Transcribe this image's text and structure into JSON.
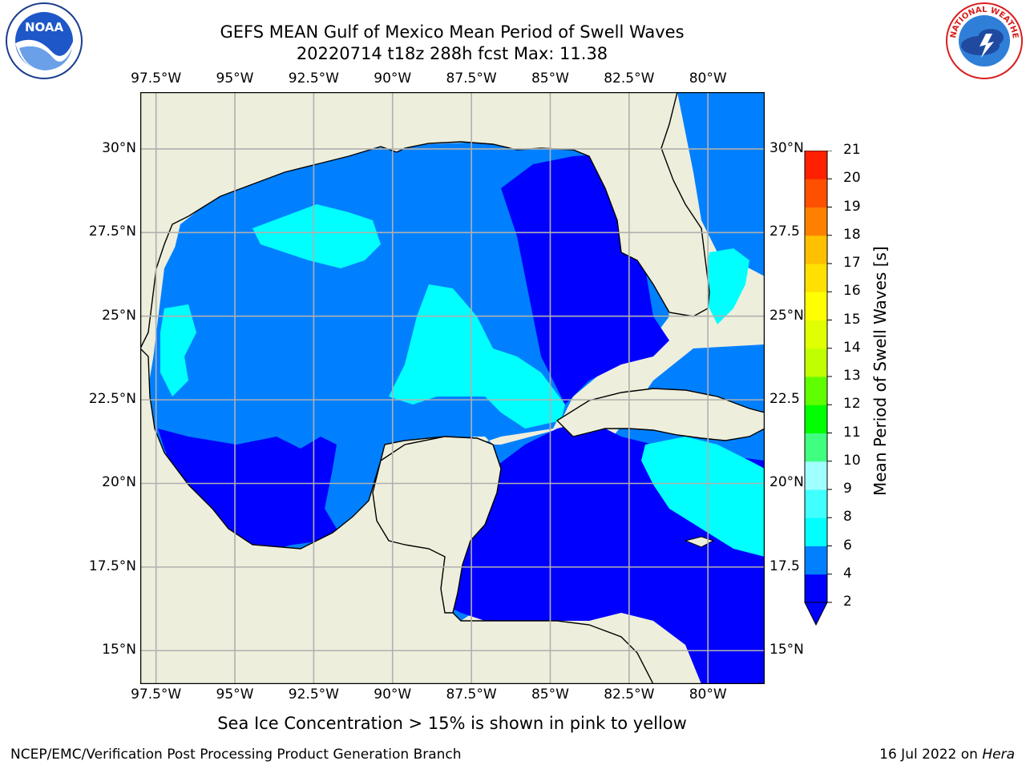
{
  "header": {
    "title_line1": "GEFS MEAN Gulf of Mexico Mean Period of Swell Waves",
    "title_line2": "20220714 t18z 288h fcst   Max: 11.38"
  },
  "logos": {
    "left": "noaa-logo",
    "right": "nws-logo"
  },
  "map": {
    "lon_ticks": [
      "97.5°W",
      "95°W",
      "92.5°W",
      "90°W",
      "87.5°W",
      "85°W",
      "82.5°W",
      "80°W"
    ],
    "lat_ticks": [
      "30°N",
      "27.5°N",
      "25°N",
      "22.5°N",
      "20°N",
      "17.5°N",
      "15°N"
    ],
    "lat_ticks_right": [
      "30°N",
      "27.5",
      "25°N",
      "22.5",
      "20°N",
      "17.5",
      "15°N"
    ],
    "extent": {
      "lon": [
        -98,
        -78.2
      ],
      "lat": [
        14,
        31.7
      ]
    },
    "colors": {
      "land": "#eeeedc",
      "grid": "#b0b0b0",
      "coast": "#000000"
    }
  },
  "colorbar": {
    "label": "Mean Period of Swell Waves [s]",
    "ticks": [
      "2",
      "4",
      "6",
      "8",
      "9",
      "10",
      "11",
      "12",
      "13",
      "14",
      "15",
      "16",
      "17",
      "18",
      "19",
      "20",
      "21"
    ],
    "colors": [
      "#0000ff",
      "#0080ff",
      "#00ffff",
      "#40ffff",
      "#a0ffff",
      "#40ff80",
      "#00ff00",
      "#60ff00",
      "#c0ff00",
      "#e0ff00",
      "#ffff00",
      "#ffe000",
      "#ffc000",
      "#ff8000",
      "#ff5000",
      "#ff2000",
      "#ff0000"
    ],
    "extend": "min"
  },
  "note": "Sea Ice Concentration > 15% is shown in pink to yellow",
  "footer": {
    "left": "NCEP/EMC/Verification Post Processing Product Generation Branch",
    "date": "16 Jul 2022 on",
    "host": "Hera"
  }
}
